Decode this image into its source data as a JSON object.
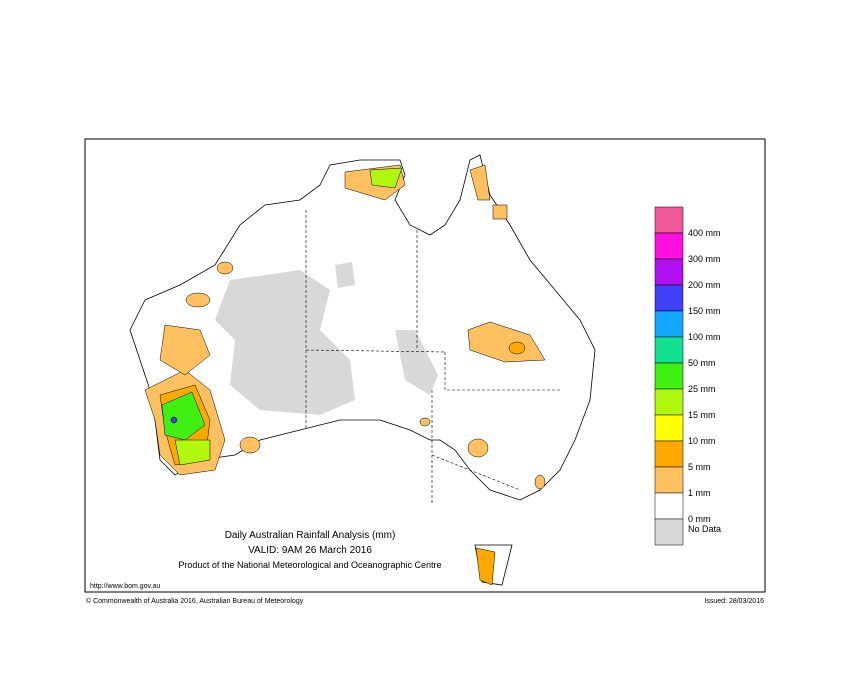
{
  "header": {
    "title": "Daily Australian Rainfall Analysis (mm)",
    "valid": "VALID: 9AM 26 March 2016",
    "product": "Product of the National Meteorological and Oceanographic Centre"
  },
  "footer": {
    "url": "http://www.bom.gov.au",
    "copyright": "© Commonwealth of Australia 2016, Australian Bureau of Meteorology",
    "issued": "Issued: 28/03/2016"
  },
  "legend": {
    "colors": [
      "#f0589a",
      "#ff10e0",
      "#b010f0",
      "#4040f8",
      "#10a8ff",
      "#10e090",
      "#40f010",
      "#b0f810",
      "#ffff00",
      "#ffa800",
      "#ffc060",
      "#ffffff"
    ],
    "labels": [
      "400 mm",
      "300 mm",
      "200 mm",
      "150 mm",
      "100 mm",
      "50 mm",
      "25 mm",
      "15 mm",
      "10 mm",
      "5 mm",
      "1 mm",
      "0 mm"
    ],
    "nodata_color": "#d8d8d8",
    "nodata": "No Data"
  }
}
